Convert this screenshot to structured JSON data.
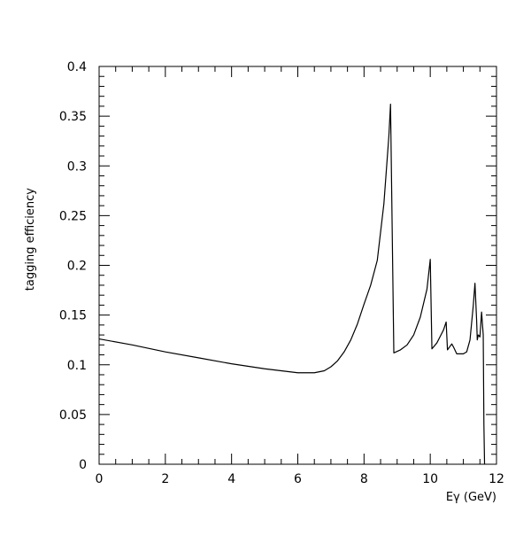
{
  "chart_data": {
    "type": "line",
    "title": "",
    "xlabel": "Eγ (GeV)",
    "ylabel": "tagging efficiency",
    "xlim": [
      0,
      12
    ],
    "ylim": [
      0,
      0.4
    ],
    "x_ticks": [
      0,
      2,
      4,
      6,
      8,
      10,
      12
    ],
    "x_tick_labels": [
      "0",
      "2",
      "4",
      "6",
      "8",
      "10",
      "12"
    ],
    "y_ticks": [
      0,
      0.05,
      0.1,
      0.15,
      0.2,
      0.25,
      0.3,
      0.35,
      0.4
    ],
    "y_tick_labels": [
      "0",
      "0.05",
      "0.1",
      "0.15",
      "0.2",
      "0.25",
      "0.3",
      "0.35",
      "0.4"
    ],
    "grid": false,
    "legend": "none",
    "line_color": "#000000",
    "series": [
      {
        "x": [
          0,
          1,
          2,
          3,
          4,
          5,
          6,
          6.5,
          6.8,
          7.0,
          7.2,
          7.4,
          7.6,
          7.8,
          8.0,
          8.2,
          8.4,
          8.6,
          8.75,
          8.8,
          8.9,
          9.1,
          9.3,
          9.5,
          9.7,
          9.9,
          10.0,
          10.05,
          10.2,
          10.4,
          10.48,
          10.52,
          10.65,
          10.7,
          10.8,
          11.0,
          11.1,
          11.2,
          11.3,
          11.35,
          11.4,
          11.42,
          11.45,
          11.5,
          11.55,
          11.6,
          11.62,
          11.64
        ],
        "y": [
          0.126,
          0.12,
          0.113,
          0.107,
          0.101,
          0.096,
          0.092,
          0.092,
          0.094,
          0.098,
          0.104,
          0.113,
          0.125,
          0.141,
          0.161,
          0.18,
          0.205,
          0.262,
          0.33,
          0.362,
          0.112,
          0.115,
          0.12,
          0.13,
          0.148,
          0.176,
          0.206,
          0.116,
          0.122,
          0.135,
          0.143,
          0.115,
          0.121,
          0.118,
          0.111,
          0.111,
          0.113,
          0.125,
          0.16,
          0.182,
          0.145,
          0.125,
          0.13,
          0.128,
          0.153,
          0.13,
          0.04,
          0.0
        ]
      }
    ]
  }
}
